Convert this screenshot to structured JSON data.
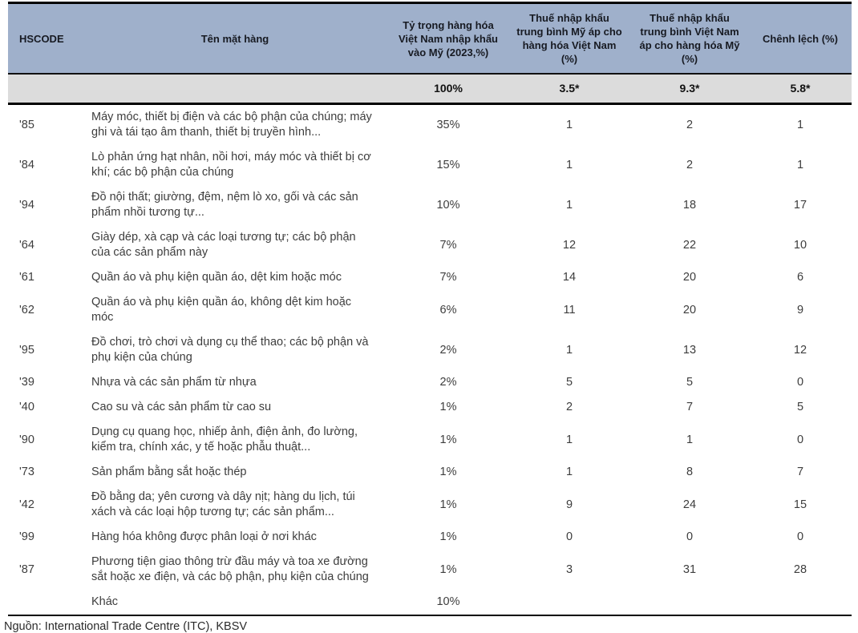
{
  "table": {
    "columns": [
      {
        "key": "code",
        "label": "HSCODE"
      },
      {
        "key": "name",
        "label": "Tên mặt hàng"
      },
      {
        "key": "share",
        "label": "Tỷ trọng hàng hóa Việt Nam nhập khẩu vào Mỹ (2023,%)"
      },
      {
        "key": "us_tariff",
        "label": "Thuế nhập khẩu trung bình Mỹ áp cho hàng hóa Việt Nam (%)"
      },
      {
        "key": "vn_tariff",
        "label": "Thuế nhập khẩu trung bình Việt Nam áp cho hàng hóa Mỹ (%)"
      },
      {
        "key": "gap",
        "label": "Chênh lệch (%)"
      }
    ],
    "summary": {
      "share": "100%",
      "us_tariff": "3.5*",
      "vn_tariff": "9.3*",
      "gap": "5.8*"
    },
    "rows": [
      {
        "code": "'85",
        "name": "Máy móc, thiết bị điện và các bộ phận của chúng; máy ghi và tái tạo âm thanh, thiết bị truyền hình...",
        "share": "35%",
        "us_tariff": "1",
        "vn_tariff": "2",
        "gap": "1"
      },
      {
        "code": "'84",
        "name": "Lò phản ứng hạt nhân, nồi hơi, máy móc và thiết bị cơ khí; các bộ phận của chúng",
        "share": "15%",
        "us_tariff": "1",
        "vn_tariff": "2",
        "gap": "1"
      },
      {
        "code": "'94",
        "name": "Đồ nội thất; giường, đệm, nệm lò xo, gối và các sản phẩm nhồi tương tự...",
        "share": "10%",
        "us_tariff": "1",
        "vn_tariff": "18",
        "gap": "17"
      },
      {
        "code": "'64",
        "name": "Giày dép, xà cạp và các loại tương tự; các bộ phận của các sản phẩm này",
        "share": "7%",
        "us_tariff": "12",
        "vn_tariff": "22",
        "gap": "10"
      },
      {
        "code": "'61",
        "name": "Quần áo và phụ kiện quần áo, dệt kim hoặc móc",
        "share": "7%",
        "us_tariff": "14",
        "vn_tariff": "20",
        "gap": "6"
      },
      {
        "code": "'62",
        "name": "Quần áo và phụ kiện quần áo, không dệt kim hoặc móc",
        "share": "6%",
        "us_tariff": "11",
        "vn_tariff": "20",
        "gap": "9"
      },
      {
        "code": "'95",
        "name": "Đồ chơi, trò chơi và dụng cụ thể thao; các bộ phận và phụ kiện của chúng",
        "share": "2%",
        "us_tariff": "1",
        "vn_tariff": "13",
        "gap": "12"
      },
      {
        "code": "'39",
        "name": "Nhựa và các sản phẩm từ nhựa",
        "share": "2%",
        "us_tariff": "5",
        "vn_tariff": "5",
        "gap": "0"
      },
      {
        "code": "'40",
        "name": "Cao su và các sản phẩm từ cao su",
        "share": "1%",
        "us_tariff": "2",
        "vn_tariff": "7",
        "gap": "5"
      },
      {
        "code": "'90",
        "name": "Dụng cụ quang học, nhiếp ảnh, điện ảnh, đo lường, kiểm tra, chính xác, y tế hoặc phẫu thuật...",
        "share": "1%",
        "us_tariff": "1",
        "vn_tariff": "1",
        "gap": "0"
      },
      {
        "code": "'73",
        "name": "Sản phẩm bằng sắt hoặc thép",
        "share": "1%",
        "us_tariff": "1",
        "vn_tariff": "8",
        "gap": "7"
      },
      {
        "code": "'42",
        "name": "Đồ bằng da; yên cương và dây nịt; hàng du lịch, túi xách và các loại hộp tương tự; các sản phẩm...",
        "share": "1%",
        "us_tariff": "9",
        "vn_tariff": "24",
        "gap": "15"
      },
      {
        "code": "'99",
        "name": "Hàng hóa không được phân loại ở nơi khác",
        "share": "1%",
        "us_tariff": "0",
        "vn_tariff": "0",
        "gap": "0"
      },
      {
        "code": "'87",
        "name": "Phương tiện giao thông trừ đầu máy và toa xe đường sắt hoặc xe điện, và các bộ phận, phụ kiện của chúng",
        "share": "1%",
        "us_tariff": "3",
        "vn_tariff": "31",
        "gap": "28"
      },
      {
        "code": "",
        "name": "Khác",
        "share": "10%",
        "us_tariff": "",
        "vn_tariff": "",
        "gap": ""
      }
    ]
  },
  "source_note": "Nguồn: International Trade Centre (ITC), KBSV",
  "colors": {
    "header_bg": "#9fb0cb",
    "summary_bg": "#dcdcdc",
    "border": "#000000",
    "body_text": "#3d3d3d"
  }
}
